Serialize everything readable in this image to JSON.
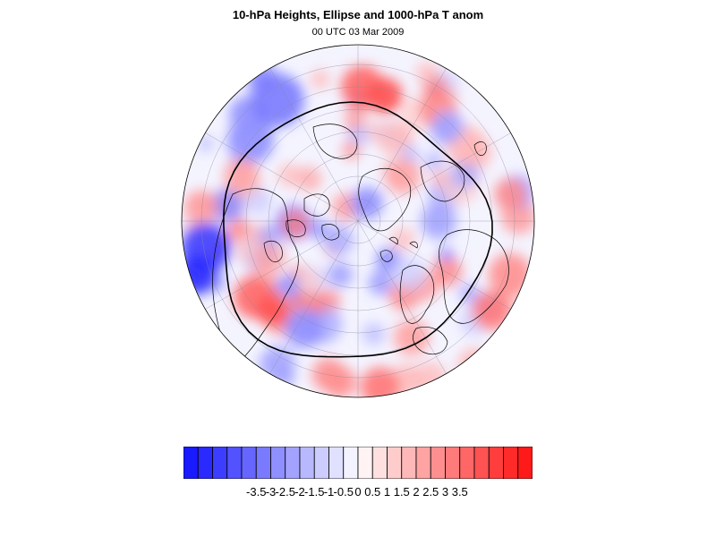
{
  "title": "10-hPa Heights, Ellipse and 1000-hPa T anom",
  "subtitle": "00 UTC 03 Mar 2009",
  "colorbar": {
    "colors": [
      "#1a1aff",
      "#2a2aff",
      "#3d3dff",
      "#5252ff",
      "#6666ff",
      "#7a7aff",
      "#8f8fff",
      "#a3a3ff",
      "#b8b8ff",
      "#ccccff",
      "#e0e0ff",
      "#f3f3ff",
      "#fff3f3",
      "#ffe0e0",
      "#ffcccc",
      "#ffb8b8",
      "#ffa3a3",
      "#ff8f8f",
      "#ff7a7a",
      "#ff6666",
      "#ff5252",
      "#ff3d3d",
      "#ff2a2a",
      "#ff1a1a"
    ],
    "labels": [
      "-3.5",
      "-3",
      "-2.5",
      "-2",
      "-1.5",
      "-1",
      "-0.5",
      "0",
      "0.5",
      "1",
      "1.5",
      "2",
      "2.5",
      "3",
      "3.5"
    ]
  },
  "map": {
    "projection": "polar-stereographic-north",
    "contour": "10-hPa height ellipse",
    "features": [
      "coastlines",
      "lat-lon-grid",
      "temperature-anomaly-field"
    ]
  }
}
